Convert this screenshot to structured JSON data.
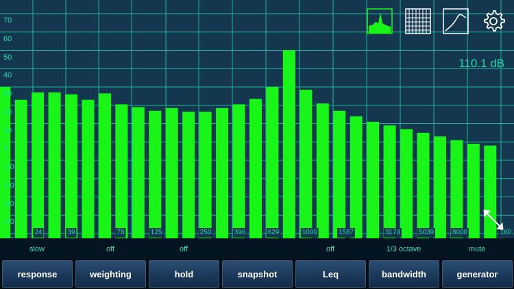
{
  "analyzer": {
    "y_axis_labels": [
      "70",
      "60",
      "50",
      "40",
      "30",
      "20",
      "10",
      "0",
      "-10",
      "-20",
      "-30",
      "-40",
      "-50"
    ],
    "freq_labels": [
      "24",
      "39",
      "78",
      "125",
      "250",
      "396",
      "629",
      "1000",
      "1587",
      "3174",
      "5039",
      "8000",
      "160"
    ],
    "level_readout": "110.1 dB",
    "bar_levels_db": [
      30,
      23,
      27,
      27,
      26,
      23,
      26.5,
      20.5,
      19,
      17,
      18.5,
      16.5,
      16.5,
      18.5,
      20.5,
      23.5,
      30,
      50,
      28.5,
      21,
      17,
      14,
      11,
      9,
      7,
      5,
      3,
      1,
      -1,
      -2
    ],
    "colors": {
      "bar": "#19f519",
      "grid": "#1fb79b",
      "background": "#14374f"
    }
  },
  "toolbar_icons": [
    "spectrum-view-icon",
    "grid-view-icon",
    "curve-view-icon",
    "settings-gear-icon"
  ],
  "settings": {
    "response_value": "slow",
    "weighting_value": "off",
    "hold_value": "off",
    "leq_value": "off",
    "bandwidth_value": "1/3 octave",
    "generator_value": "mute"
  },
  "buttons": {
    "response": "response",
    "weighting": "weighting",
    "hold": "hold",
    "snapshot": "snapshot",
    "leq": "Leq",
    "bandwidth": "bandwidth",
    "generator": "generator"
  }
}
